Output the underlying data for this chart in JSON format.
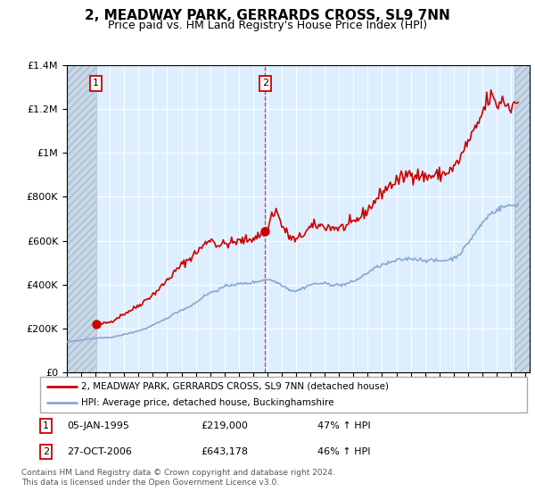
{
  "title": "2, MEADWAY PARK, GERRARDS CROSS, SL9 7NN",
  "subtitle": "Price paid vs. HM Land Registry's House Price Index (HPI)",
  "title_fontsize": 11,
  "subtitle_fontsize": 9,
  "sale1_date": 1995.04,
  "sale1_price": 219000,
  "sale2_date": 2006.83,
  "sale2_price": 643178,
  "legend_line1": "2, MEADWAY PARK, GERRARDS CROSS, SL9 7NN (detached house)",
  "legend_line2": "HPI: Average price, detached house, Buckinghamshire",
  "footnote": "Contains HM Land Registry data © Crown copyright and database right 2024.\nThis data is licensed under the Open Government Licence v3.0.",
  "red_color": "#cc0000",
  "blue_color": "#88aad0",
  "bg_color": "#ddeeff",
  "hatch_color": "#c8d8e8",
  "ylim": [
    0,
    1400000
  ],
  "xlim_start": 1993.0,
  "xlim_end": 2025.3,
  "hatch_left_end": 1995.04,
  "hatch_right_start": 2024.25
}
